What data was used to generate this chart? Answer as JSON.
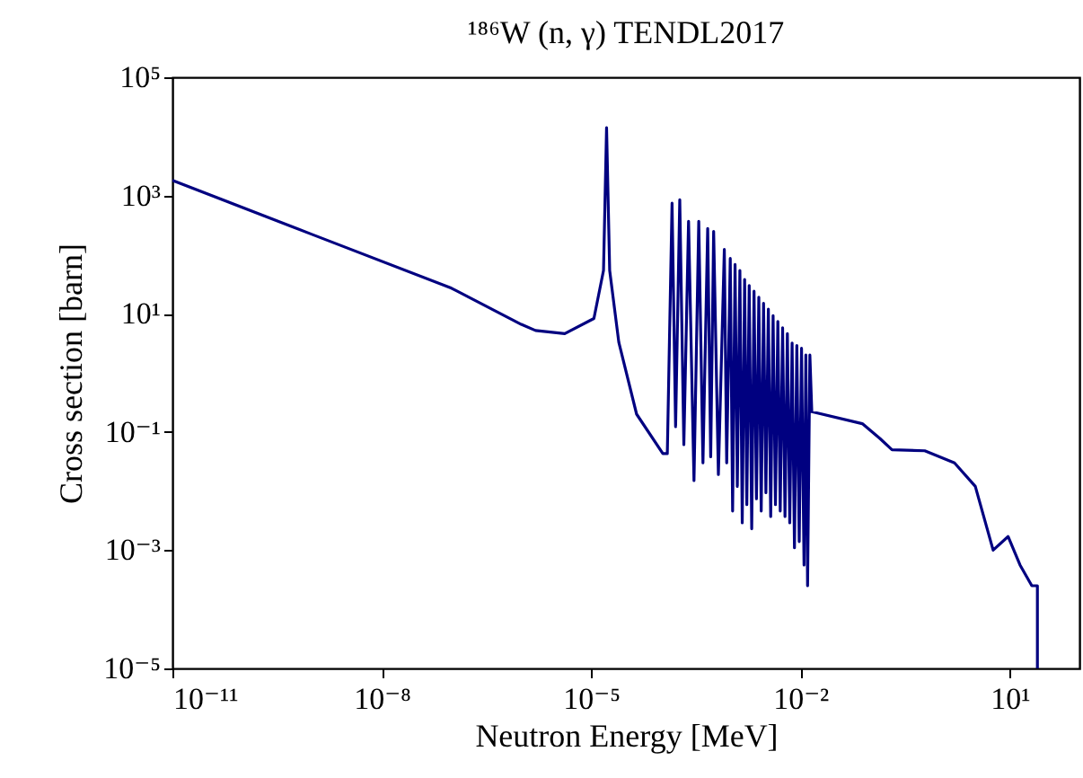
{
  "chart_data": {
    "type": "line",
    "title": "¹⁸⁶W (n, γ) TENDL2017",
    "xlabel": "Neutron Energy [MeV]",
    "ylabel": "Cross section [barn]",
    "log": "xy",
    "grid": false,
    "xlim": [
      1e-11,
      100
    ],
    "ylim": [
      1e-05,
      100000.0
    ],
    "xticks": [
      {
        "value": 1e-11,
        "label": "10⁻¹¹"
      },
      {
        "value": 1e-08,
        "label": "10⁻⁸"
      },
      {
        "value": 1e-05,
        "label": "10⁻⁵"
      },
      {
        "value": 0.01,
        "label": "10⁻²"
      },
      {
        "value": 10,
        "label": "10¹"
      }
    ],
    "yticks": [
      {
        "value": 1e-05,
        "label": "10⁻⁵"
      },
      {
        "value": 0.001,
        "label": "10⁻³"
      },
      {
        "value": 0.1,
        "label": "10⁻¹"
      },
      {
        "value": 10,
        "label": "10¹"
      },
      {
        "value": 1000,
        "label": "10³"
      },
      {
        "value": 100000,
        "label": "10⁵"
      }
    ],
    "series": [
      {
        "color": "#000080",
        "x": [
          1e-11,
          1e-09,
          1e-07,
          1e-06,
          1.6e-06,
          4.2e-06,
          1.1e-05,
          1.51e-05,
          1.67e-05,
          1.85e-05,
          2.5e-05,
          4.5e-05,
          0.000107,
          0.000124,
          0.000145,
          0.000163,
          0.000187,
          0.000214,
          0.00025,
          0.000299,
          0.00035,
          0.000402,
          0.00047,
          0.000519,
          0.000572,
          0.000669,
          0.000814,
          0.00088,
          0.00099,
          0.00107,
          0.00116,
          0.00125,
          0.00136,
          0.00147,
          0.00159,
          0.00171,
          0.00185,
          0.00201,
          0.00217,
          0.00235,
          0.00254,
          0.00275,
          0.00297,
          0.00321,
          0.00348,
          0.00376,
          0.00407,
          0.0044,
          0.00476,
          0.00515,
          0.00557,
          0.00603,
          0.00652,
          0.00705,
          0.00762,
          0.00824,
          0.00891,
          0.00964,
          0.0104,
          0.0113,
          0.012,
          0.0127,
          0.0137,
          0.0146,
          0.0773,
          0.139,
          0.206,
          0.607,
          1.62,
          3.22,
          5.8,
          9.5,
          14.1,
          20.8,
          25,
          25
        ],
        "values": [
          1800,
          220,
          27,
          6.6,
          5.2,
          4.6,
          8.3,
          54,
          14000,
          54,
          3.3,
          0.2,
          0.043,
          0.043,
          740,
          0.123,
          850,
          0.061,
          367,
          0.015,
          367,
          0.03,
          277,
          0.038,
          247,
          0.019,
          122,
          0.03,
          86,
          0.0046,
          68,
          0.012,
          54,
          0.0029,
          38,
          0.0059,
          30,
          0.0023,
          24,
          0.0074,
          19,
          0.0046,
          15,
          0.0094,
          12,
          0.0037,
          9.3,
          0.0059,
          7.4,
          0.0046,
          5.8,
          0.0037,
          4.6,
          0.0029,
          3.2,
          0.0011,
          2.9,
          0.0014,
          2.6,
          0.00056,
          2.0,
          0.00025,
          2.0,
          0.22,
          0.138,
          0.077,
          0.05,
          0.048,
          0.03,
          0.012,
          0.001,
          0.0017,
          0.00056,
          0.00025,
          0.00025,
          1e-05
        ]
      }
    ]
  }
}
